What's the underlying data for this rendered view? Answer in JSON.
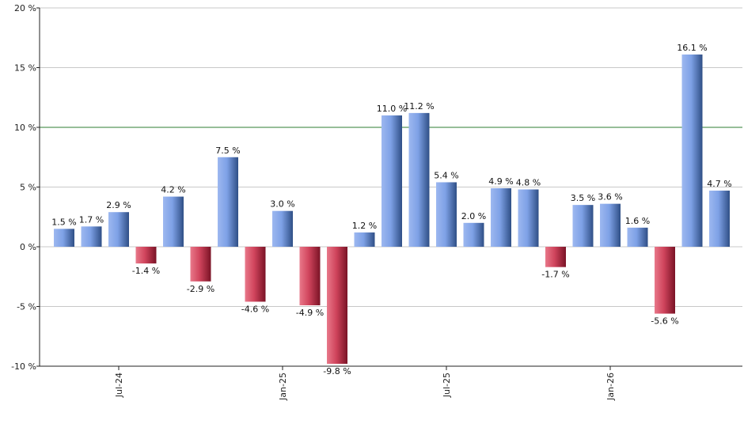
{
  "chart_data": {
    "type": "bar",
    "values": [
      1.5,
      1.7,
      2.9,
      -1.4,
      4.2,
      -2.9,
      7.5,
      -4.6,
      3.0,
      -4.9,
      -9.8,
      1.2,
      11.0,
      11.2,
      5.4,
      2.0,
      4.9,
      4.8,
      -1.7,
      3.5,
      3.6,
      1.6,
      -5.6,
      16.1,
      4.7
    ],
    "data_labels": [
      "1.5 %",
      "1.7 %",
      "2.9 %",
      "-1.4 %",
      "4.2 %",
      "-2.9 %",
      "7.5 %",
      "-4.6 %",
      "3.0 %",
      "-4.9 %",
      "-9.8 %",
      "1.2 %",
      "11.0 %",
      "11.2 %",
      "5.4 %",
      "2.0 %",
      "4.9 %",
      "4.8 %",
      "-1.7 %",
      "3.5 %",
      "3.6 %",
      "1.6 %",
      "-5.6 %",
      "16.1 %",
      "4.7 %"
    ],
    "ylim": [
      -10,
      20
    ],
    "y_ticks": [
      20,
      15,
      10,
      5,
      0,
      -5,
      -10
    ],
    "y_tick_labels": [
      "20 %",
      "15 %",
      "10 %",
      "5 %",
      "0 %",
      "-5 %",
      "-10 %"
    ],
    "x_tick_labels": [
      {
        "label": "Jul-24",
        "bar_index": 2
      },
      {
        "label": "Jan-25",
        "bar_index": 8
      },
      {
        "label": "Jul-25",
        "bar_index": 14
      },
      {
        "label": "Jan-26",
        "bar_index": 20
      }
    ],
    "reference_line": {
      "value": 10,
      "color": "#2e7d32"
    },
    "grid": true,
    "colors": {
      "positive": "#6f94dd",
      "negative": "#c8384f",
      "grid": "#c8c8c8",
      "axis": "#222222"
    }
  }
}
